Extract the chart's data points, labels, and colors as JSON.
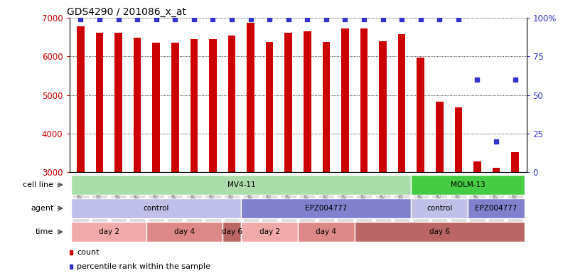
{
  "title": "GDS4290 / 201086_x_at",
  "samples": [
    "GSM739151",
    "GSM739152",
    "GSM739153",
    "GSM739157",
    "GSM739158",
    "GSM739159",
    "GSM739163",
    "GSM739164",
    "GSM739165",
    "GSM739148",
    "GSM739149",
    "GSM739150",
    "GSM739154",
    "GSM739155",
    "GSM739156",
    "GSM739160",
    "GSM739161",
    "GSM739162",
    "GSM739169",
    "GSM739170",
    "GSM739171",
    "GSM739166",
    "GSM739167",
    "GSM739168"
  ],
  "counts": [
    6780,
    6610,
    6610,
    6480,
    6360,
    6360,
    6440,
    6440,
    6530,
    6870,
    6380,
    6620,
    6650,
    6370,
    6720,
    6720,
    6400,
    6580,
    5970,
    4820,
    4680,
    3280,
    3120,
    3520
  ],
  "percentile": [
    99,
    99,
    99,
    99,
    99,
    99,
    99,
    99,
    99,
    99,
    99,
    99,
    99,
    99,
    99,
    99,
    99,
    99,
    99,
    99,
    99,
    60,
    20,
    60
  ],
  "ylim_left": [
    3000,
    7000
  ],
  "ylim_right": [
    0,
    100
  ],
  "yticks_left": [
    3000,
    4000,
    5000,
    6000,
    7000
  ],
  "yticks_right": [
    0,
    25,
    50,
    75,
    100
  ],
  "ytick_labels_right": [
    "0",
    "25",
    "50",
    "75",
    "100%"
  ],
  "bar_color": "#cc0000",
  "dot_color": "#3333cc",
  "cell_line_groups": [
    {
      "label": "MV4-11",
      "start": 0,
      "end": 18,
      "color": "#aaddaa"
    },
    {
      "label": "MOLM-13",
      "start": 18,
      "end": 24,
      "color": "#44cc44"
    }
  ],
  "agent_groups": [
    {
      "label": "control",
      "start": 0,
      "end": 9,
      "color": "#c0c0e8"
    },
    {
      "label": "EPZ004777",
      "start": 9,
      "end": 18,
      "color": "#8080cc"
    },
    {
      "label": "control",
      "start": 18,
      "end": 21,
      "color": "#c0c0e8"
    },
    {
      "label": "EPZ004777",
      "start": 21,
      "end": 24,
      "color": "#8080cc"
    }
  ],
  "time_groups": [
    {
      "label": "day 2",
      "start": 0,
      "end": 4,
      "color": "#f0aaaa"
    },
    {
      "label": "day 4",
      "start": 4,
      "end": 8,
      "color": "#dd8888"
    },
    {
      "label": "day 6",
      "start": 8,
      "end": 9,
      "color": "#bb6666"
    },
    {
      "label": "day 2",
      "start": 9,
      "end": 12,
      "color": "#f0aaaa"
    },
    {
      "label": "day 4",
      "start": 12,
      "end": 15,
      "color": "#dd8888"
    },
    {
      "label": "day 6",
      "start": 15,
      "end": 24,
      "color": "#bb6666"
    }
  ],
  "annotation_row_labels": [
    "cell line",
    "agent",
    "time"
  ],
  "legend_items": [
    {
      "label": "count",
      "color": "#cc0000"
    },
    {
      "label": "percentile rank within the sample",
      "color": "#3333cc"
    }
  ],
  "xtick_bg_color": "#dddddd"
}
